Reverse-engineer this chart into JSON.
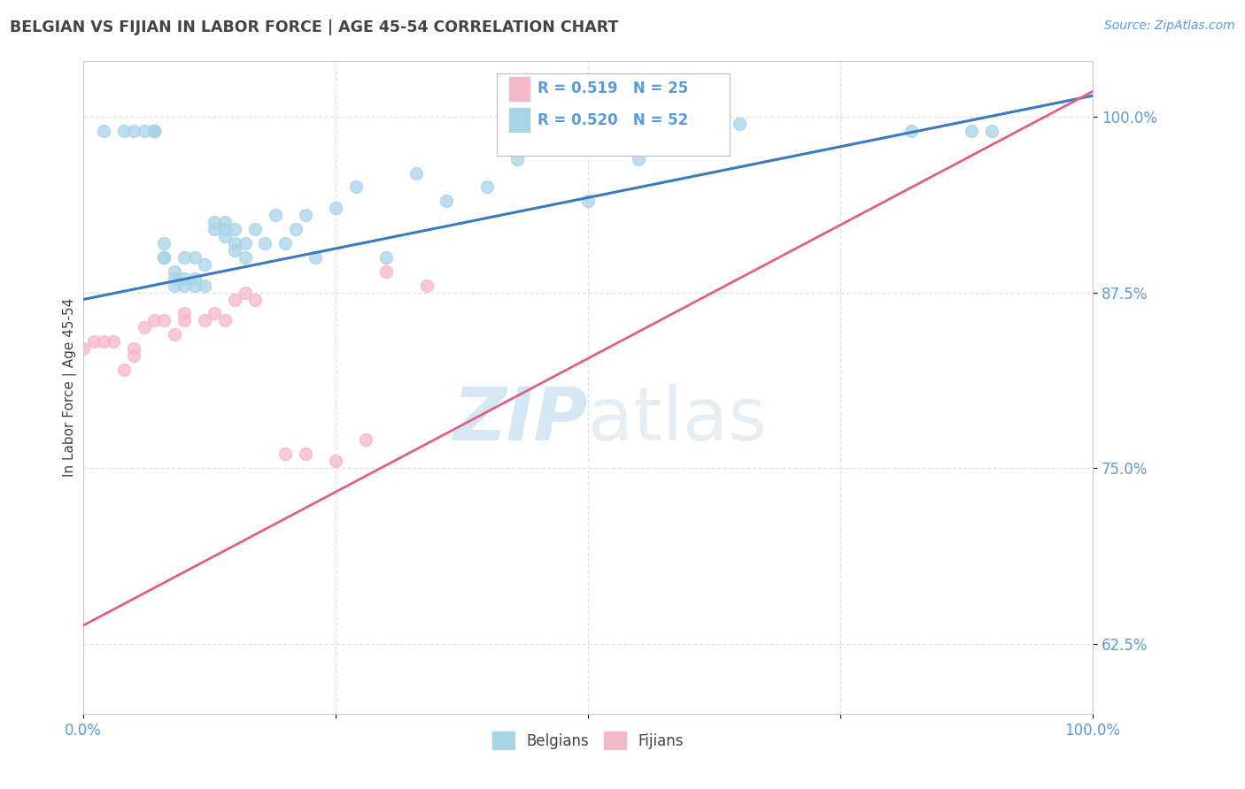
{
  "title": "BELGIAN VS FIJIAN IN LABOR FORCE | AGE 45-54 CORRELATION CHART",
  "source_text": "Source: ZipAtlas.com",
  "ylabel": "In Labor Force | Age 45-54",
  "xlim": [
    0.0,
    1.0
  ],
  "ylim": [
    0.575,
    1.04
  ],
  "yticks": [
    0.625,
    0.75,
    0.875,
    1.0
  ],
  "ytick_labels": [
    "62.5%",
    "75.0%",
    "87.5%",
    "100.0%"
  ],
  "xticks": [
    0.0,
    0.25,
    0.5,
    0.75,
    1.0
  ],
  "xtick_labels": [
    "0.0%",
    "",
    "",
    "",
    "100.0%"
  ],
  "belgian_x": [
    0.02,
    0.04,
    0.05,
    0.06,
    0.07,
    0.07,
    0.07,
    0.08,
    0.08,
    0.08,
    0.09,
    0.09,
    0.09,
    0.1,
    0.1,
    0.1,
    0.11,
    0.11,
    0.11,
    0.12,
    0.12,
    0.13,
    0.13,
    0.14,
    0.14,
    0.14,
    0.15,
    0.15,
    0.15,
    0.16,
    0.16,
    0.17,
    0.18,
    0.19,
    0.2,
    0.21,
    0.22,
    0.23,
    0.25,
    0.27,
    0.3,
    0.33,
    0.36,
    0.4,
    0.43,
    0.5,
    0.55,
    0.6,
    0.65,
    0.82,
    0.88,
    0.9
  ],
  "belgian_y": [
    0.99,
    0.99,
    0.99,
    0.99,
    0.99,
    0.99,
    0.99,
    0.9,
    0.9,
    0.91,
    0.88,
    0.885,
    0.89,
    0.88,
    0.885,
    0.9,
    0.88,
    0.885,
    0.9,
    0.88,
    0.895,
    0.92,
    0.925,
    0.915,
    0.92,
    0.925,
    0.905,
    0.91,
    0.92,
    0.9,
    0.91,
    0.92,
    0.91,
    0.93,
    0.91,
    0.92,
    0.93,
    0.9,
    0.935,
    0.95,
    0.9,
    0.96,
    0.94,
    0.95,
    0.97,
    0.94,
    0.97,
    0.99,
    0.995,
    0.99,
    0.99,
    0.99
  ],
  "fijian_x": [
    0.0,
    0.01,
    0.02,
    0.03,
    0.04,
    0.05,
    0.05,
    0.06,
    0.07,
    0.08,
    0.09,
    0.1,
    0.1,
    0.12,
    0.13,
    0.14,
    0.15,
    0.16,
    0.17,
    0.2,
    0.22,
    0.25,
    0.28,
    0.3,
    0.34
  ],
  "fijian_y": [
    0.835,
    0.84,
    0.84,
    0.84,
    0.82,
    0.83,
    0.835,
    0.85,
    0.855,
    0.855,
    0.845,
    0.855,
    0.86,
    0.855,
    0.86,
    0.855,
    0.87,
    0.875,
    0.87,
    0.76,
    0.76,
    0.755,
    0.77,
    0.89,
    0.88
  ],
  "belgian_color": "#a8d4e8",
  "fijian_color": "#f5b8c8",
  "belgian_line_color": "#3a7abf",
  "fijian_line_color": "#e06080",
  "belgian_R": 0.52,
  "belgian_N": 52,
  "fijian_R": 0.519,
  "fijian_N": 25,
  "watermark_zip": "ZIP",
  "watermark_atlas": "atlas",
  "background_color": "#ffffff",
  "grid_color": "#e0e0e0",
  "axis_color": "#cccccc",
  "label_color": "#5b9bd5",
  "title_color": "#444444",
  "legend_box_color": "#f0f0f0",
  "legend_border_color": "#cccccc"
}
